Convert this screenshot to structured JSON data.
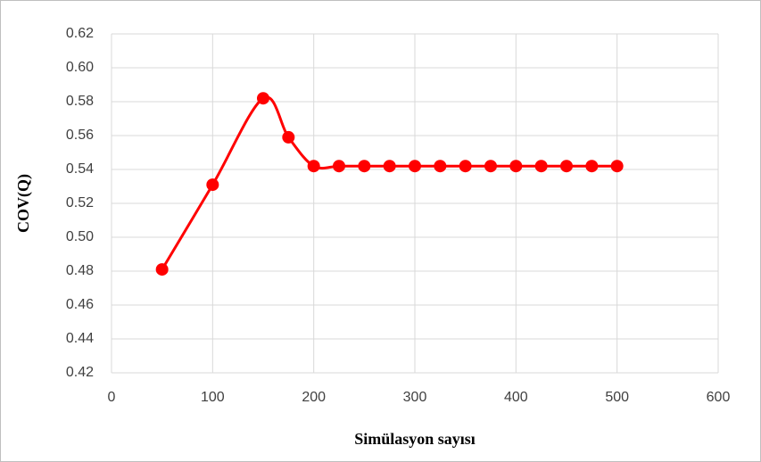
{
  "chart_data": {
    "type": "line",
    "x_label": "Simülasyon sayısı",
    "y_label": "COV(Q)",
    "x": [
      50,
      100,
      150,
      175,
      200,
      225,
      250,
      275,
      300,
      325,
      350,
      375,
      400,
      425,
      450,
      475,
      500
    ],
    "series": [
      {
        "color": "#ff0000",
        "values": [
          0.481,
          0.531,
          0.582,
          0.559,
          0.542,
          0.542,
          0.542,
          0.542,
          0.542,
          0.542,
          0.542,
          0.542,
          0.542,
          0.542,
          0.542,
          0.542,
          0.542
        ]
      }
    ],
    "smooth": true,
    "markers": true,
    "xlim": [
      0,
      600
    ],
    "xticks": [
      0,
      100,
      200,
      300,
      400,
      500,
      600
    ],
    "ylim": [
      0.42,
      0.62
    ],
    "yticks": [
      0.42,
      0.44,
      0.46,
      0.48,
      {
        "value": 0.5,
        "label": "0.50"
      },
      0.52,
      0.54,
      0.56,
      0.58,
      {
        "value": 0.6,
        "label": "0.60"
      },
      0.62
    ],
    "grid": true
  }
}
